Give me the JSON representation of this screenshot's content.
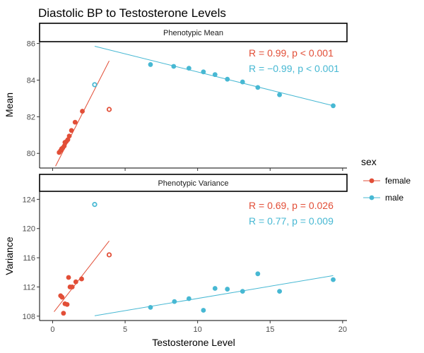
{
  "chart_data": {
    "type": "scatter",
    "title": "Diastolic BP to Testosterone Levels",
    "xlabel": "Testosterone Level",
    "xlim": [
      -0.9,
      20.3
    ],
    "x_ticks": [
      0,
      5,
      10,
      15,
      20
    ],
    "x_tick_labels": [
      "0",
      "5",
      "10",
      "15",
      "20"
    ],
    "legend": {
      "title": "sex",
      "position": "right",
      "items": [
        {
          "label": "female",
          "color": "#E24E37"
        },
        {
          "label": "male",
          "color": "#47B8D3"
        }
      ]
    },
    "colors": {
      "female": "#E24E37",
      "male": "#47B8D3"
    },
    "panels": [
      {
        "strip": "Phenotypic Mean",
        "ylabel": "Mean",
        "ylim": [
          79.2,
          86.1
        ],
        "y_ticks": [
          80,
          82,
          84,
          86
        ],
        "y_tick_labels": [
          "80",
          "82",
          "84",
          "86"
        ],
        "series": [
          {
            "name": "female",
            "color": "#E24E37",
            "points": [
              [
                0.45,
                80.05
              ],
              [
                0.55,
                80.15
              ],
              [
                0.62,
                80.25
              ],
              [
                0.7,
                80.3
              ],
              [
                0.8,
                80.4
              ],
              [
                0.85,
                80.6
              ],
              [
                0.95,
                80.65
              ],
              [
                1.05,
                80.75
              ],
              [
                1.15,
                80.95
              ],
              [
                1.3,
                81.25
              ],
              [
                1.55,
                81.7
              ],
              [
                2.05,
                82.3
              ]
            ],
            "outliers": [
              [
                3.9,
                82.4
              ]
            ],
            "fit": [
              [
                0.2,
                79.3
              ],
              [
                3.9,
                85.05
              ]
            ],
            "stat": "R = 0.99, p < 0.001"
          },
          {
            "name": "male",
            "color": "#47B8D3",
            "points": [
              [
                6.75,
                84.85
              ],
              [
                8.35,
                84.75
              ],
              [
                9.4,
                84.65
              ],
              [
                10.4,
                84.45
              ],
              [
                11.2,
                84.3
              ],
              [
                12.05,
                84.05
              ],
              [
                13.1,
                83.9
              ],
              [
                14.15,
                83.6
              ],
              [
                15.65,
                83.2
              ],
              [
                19.35,
                82.6
              ]
            ],
            "outliers": [
              [
                2.9,
                83.75
              ]
            ],
            "fit": [
              [
                2.9,
                85.85
              ],
              [
                19.35,
                82.6
              ]
            ],
            "stat": "R = −0.99, p < 0.001"
          }
        ]
      },
      {
        "strip": "Phenotypic Variance",
        "ylabel": "Variance",
        "ylim": [
          107.4,
          125.1
        ],
        "y_ticks": [
          108,
          112,
          116,
          120,
          124
        ],
        "y_tick_labels": [
          "108",
          "112",
          "116",
          "120",
          "124"
        ],
        "series": [
          {
            "name": "female",
            "color": "#E24E37",
            "points": [
              [
                0.55,
                110.8
              ],
              [
                0.65,
                110.6
              ],
              [
                0.75,
                108.4
              ],
              [
                0.85,
                109.7
              ],
              [
                1.0,
                109.6
              ],
              [
                1.1,
                113.3
              ],
              [
                1.2,
                112.0
              ],
              [
                1.35,
                112.0
              ],
              [
                1.6,
                112.7
              ],
              [
                2.0,
                113.1
              ]
            ],
            "outliers": [
              [
                3.9,
                116.4
              ]
            ],
            "fit": [
              [
                0.1,
                108.6
              ],
              [
                3.9,
                118.3
              ]
            ],
            "stat": "R = 0.69, p = 0.026"
          },
          {
            "name": "male",
            "color": "#47B8D3",
            "points": [
              [
                6.75,
                109.2
              ],
              [
                8.4,
                110.0
              ],
              [
                9.4,
                110.4
              ],
              [
                10.4,
                108.8
              ],
              [
                11.2,
                111.8
              ],
              [
                12.05,
                111.7
              ],
              [
                13.1,
                111.4
              ],
              [
                14.15,
                113.8
              ],
              [
                15.65,
                111.4
              ],
              [
                19.35,
                113.0
              ]
            ],
            "outliers": [
              [
                2.9,
                123.3
              ]
            ],
            "fit": [
              [
                2.9,
                108.05
              ],
              [
                19.35,
                113.55
              ]
            ],
            "stat": "R = 0.77, p = 0.009"
          }
        ]
      }
    ]
  }
}
